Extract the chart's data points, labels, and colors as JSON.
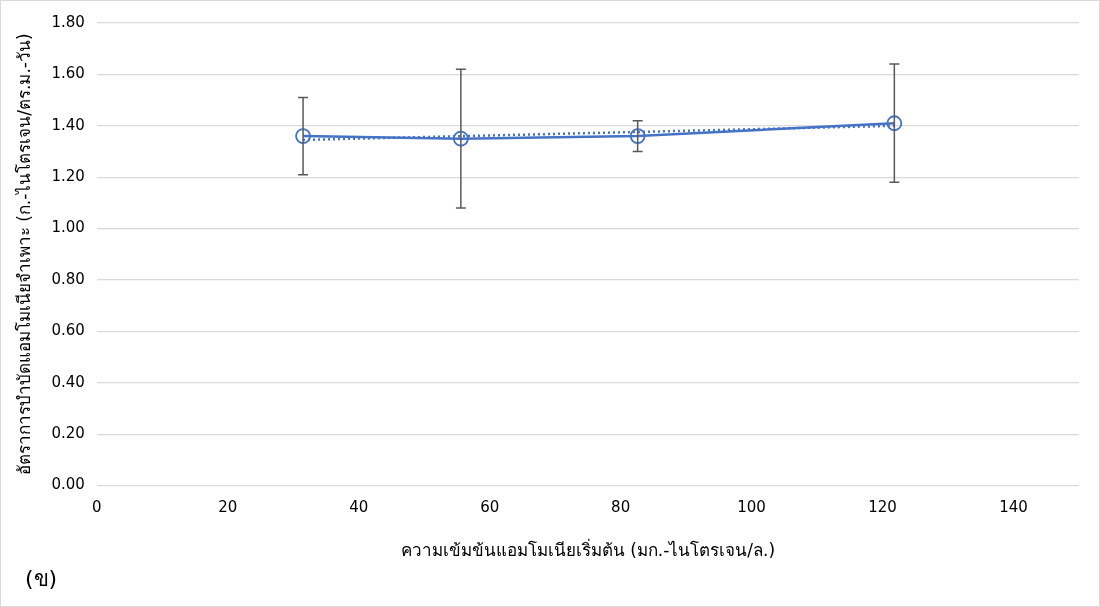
{
  "chart_data": {
    "type": "line",
    "xlabel": "ความเข้มข้นแอมโมเนียเริ่มต้น (มก.-ไนโตรเจน/ล.)",
    "ylabel": "อัตราการบำบัดแอมโมเนียจำเพาะ (ก.-ไนโตรเจน/ตร.ม.-วัน)",
    "annotations": [
      "(ข)"
    ],
    "x": [
      31.5,
      55.6,
      82.6,
      121.8
    ],
    "series": [
      {
        "color": "#4472c4",
        "values": [
          1.36,
          1.35,
          1.36,
          1.41
        ],
        "errors": [
          0.15,
          0.27,
          0.06,
          0.23
        ],
        "marker": "circle",
        "line_style": "solid"
      },
      {
        "type": "line",
        "color": "#4472c4",
        "x": [
          31.5,
          121.8
        ],
        "values": [
          1.345,
          1.4
        ],
        "marker": "none",
        "line_style": "dotted"
      }
    ],
    "xlim": [
      0,
      150
    ],
    "xticks": [
      0,
      20,
      40,
      60,
      80,
      100,
      120,
      140
    ],
    "ylim": [
      0,
      1.8
    ],
    "yticks": [
      {
        "value": 0,
        "label": "0.00"
      },
      {
        "value": 0.2,
        "label": "0.20"
      },
      {
        "value": 0.4,
        "label": "0.40"
      },
      {
        "value": 0.6,
        "label": "0.60"
      },
      {
        "value": 0.8,
        "label": "0.80"
      },
      {
        "value": 1,
        "label": "1.00"
      },
      {
        "value": 1.2,
        "label": "1.20"
      },
      {
        "value": 1.4,
        "label": "1.40"
      },
      {
        "value": 1.6,
        "label": "1.60"
      },
      {
        "value": 1.8,
        "label": "1.80"
      }
    ],
    "grid": "y",
    "legend": false
  }
}
